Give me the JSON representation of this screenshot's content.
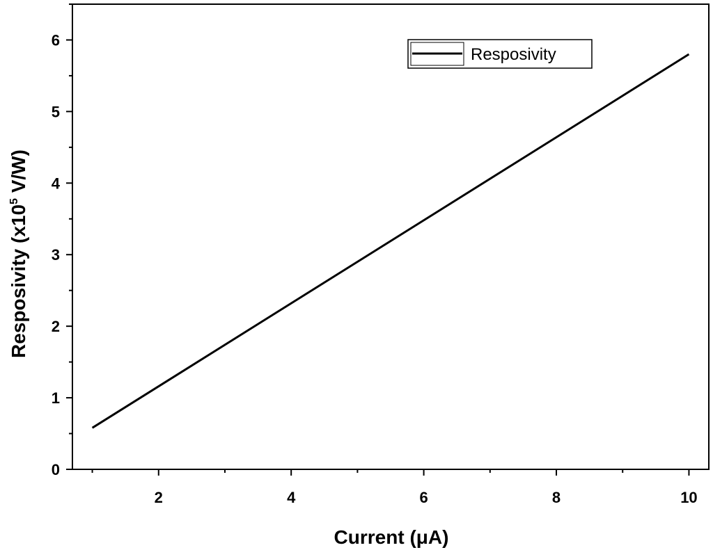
{
  "chart_data": {
    "type": "line",
    "xlabel": "Current (μA)",
    "ylabel_prefix": "Resposivity (x10",
    "ylabel_exponent": "5",
    "ylabel_suffix": " V/W)",
    "xlim": [
      0.7,
      10.3
    ],
    "ylim": [
      0,
      6.5
    ],
    "x_ticks": [
      2,
      4,
      6,
      8,
      10
    ],
    "x_tick_labels": [
      "2",
      "4",
      "6",
      "8",
      "10"
    ],
    "y_ticks": [
      0,
      1,
      2,
      3,
      4,
      5,
      6
    ],
    "y_tick_labels": [
      "0",
      "1",
      "2",
      "3",
      "4",
      "5",
      "6"
    ],
    "grid": false,
    "legend_position": "top-right",
    "series": [
      {
        "name": "Resposivity",
        "color": "#000000",
        "x": [
          1,
          10
        ],
        "y": [
          0.58,
          5.8
        ]
      }
    ]
  }
}
